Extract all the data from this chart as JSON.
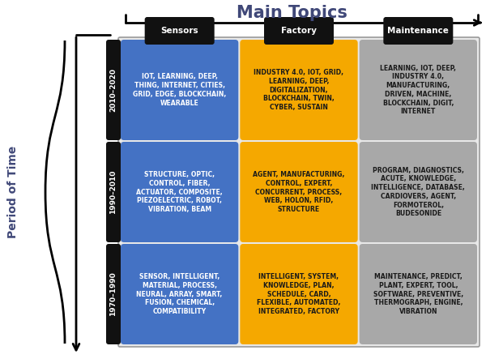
{
  "title": "Main Topics",
  "col_headers": [
    "Sensors",
    "Factory",
    "Maintenance"
  ],
  "row_headers": [
    "2010–2020",
    "1990–2010",
    "1970–1990"
  ],
  "y_label": "Period of Time",
  "cells": [
    [
      "IOT, LEARNING, DEEP,\nTHING, INTERNET, CITIES,\nGRID, EDGE, BLOCKCHAIN,\nWEARABLE",
      "INDUSTRY 4.0, IOT, GRID,\nLEARNING, DEEP,\nDIGITALIZATION,\nBLOCKCHAIN, TWIN,\nCYBER, SUSTAIN",
      "LEARNING, IOT, DEEP,\nINDUSTRY 4.0,\nMANUFACTURING,\nDRIVEN, MACHINE,\nBLOCKCHAIN, DIGIT,\nINTERNET"
    ],
    [
      "STRUCTURE, OPTIC,\nCONTROL, FIBER,\nACTUATOR, COMPOSITE,\nPIEZOELECTRIC, ROBOT,\nVIBRATION, BEAM",
      "AGENT, MANUFACTURING,\nCONTROL, EXPERT,\nCONCURRENT, PROCESS,\nWEB, HOLON, RFID,\nSTRUCTURE",
      "PROGRAM, DIAGNOSTICS,\nACUTE, KNOWLEDGE,\nINTELLIGENCE, DATABASE,\nCARDIOVERS, AGENT,\nFORMOTEROL,\nBUDESONIDE"
    ],
    [
      "SENSOR, INTELLIGENT,\nMATERIAL, PROCESS,\nNEURAL, ARRAY, SMART,\nFUSION, CHEMICAL,\nCOMPATIBILITY",
      "INTELLIGENT, SYSTEM,\nKNOWLEDGE, PLAN,\nSCHEDULE, CARD,\nFLEXIBLE, AUTOMATED,\nINTEGRATED, FACTORY",
      "MAINTENANCE, PREDICT,\nPLANT, EXPERT, TOOL,\nSOFTWARE, PREVENTIVE,\nTHERMOGRAPH, ENGINE,\nVIBRATION"
    ]
  ],
  "cell_colors": [
    [
      "#4472C4",
      "#F5A800",
      "#A8A8A8"
    ],
    [
      "#4472C4",
      "#F5A800",
      "#A8A8A8"
    ],
    [
      "#4472C4",
      "#F5A800",
      "#A8A8A8"
    ]
  ],
  "text_colors": [
    [
      "#FFFFFF",
      "#1a1a1a",
      "#1a1a1a"
    ],
    [
      "#FFFFFF",
      "#1a1a1a",
      "#1a1a1a"
    ],
    [
      "#FFFFFF",
      "#1a1a1a",
      "#1a1a1a"
    ]
  ],
  "header_bg": "#111111",
  "header_text": "#FFFFFF",
  "title_color": "#404878",
  "bg_color": "#FFFFFF",
  "grid_bg": "#E8E8E8",
  "title_fontsize": 15,
  "cell_fontsize": 5.6,
  "header_fontsize": 7.5,
  "row_label_fontsize": 6.5,
  "ylabel_fontsize": 10
}
